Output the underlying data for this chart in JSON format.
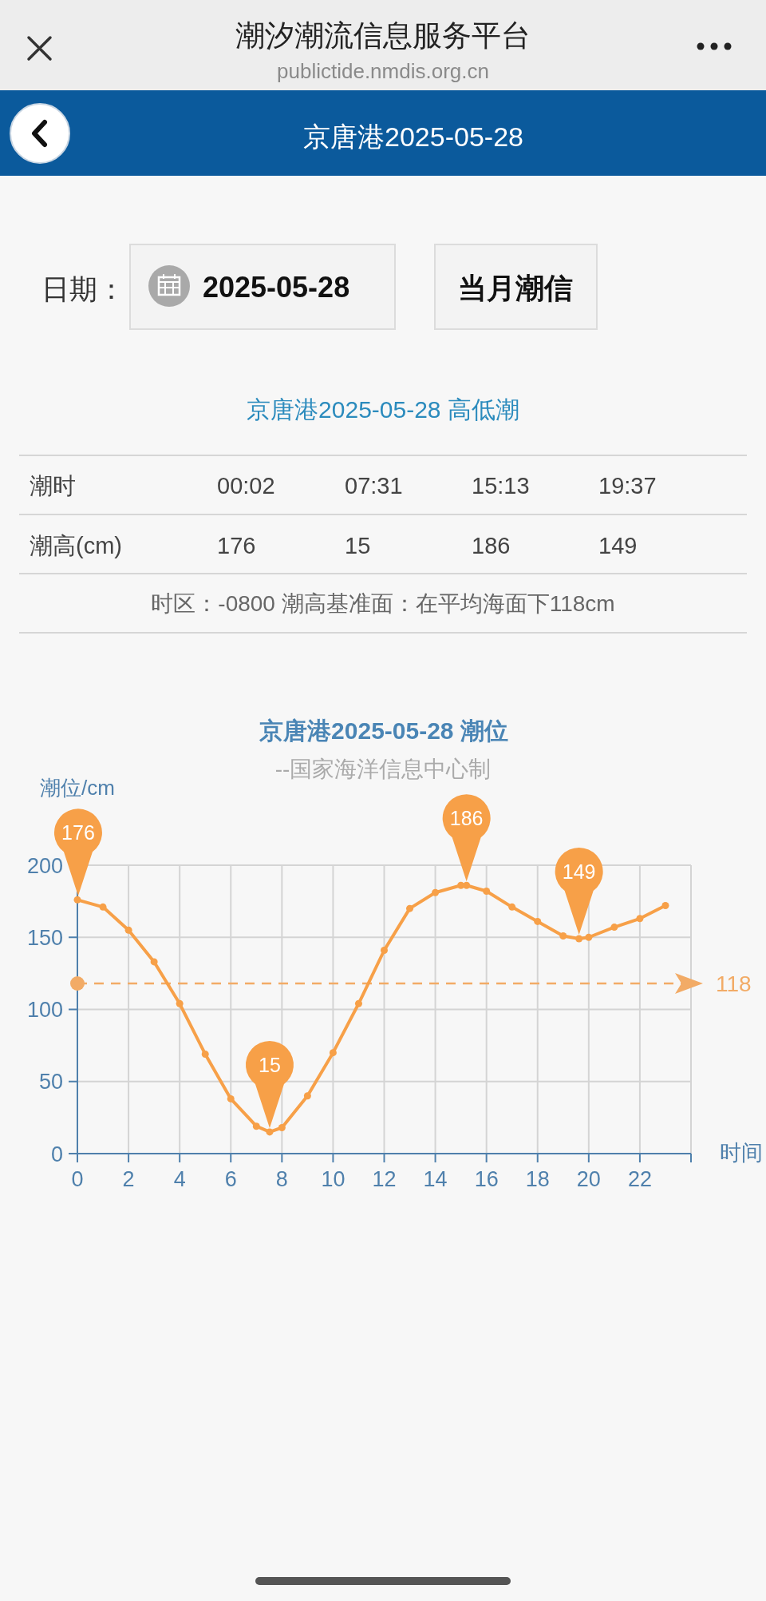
{
  "chart_data": {
    "type": "line",
    "title": "京唐港2025-05-28 潮位",
    "subtitle": "--国家海洋信息中心制",
    "xlabel": "时间",
    "ylabel": "潮位/cm",
    "x": [
      0,
      1,
      2,
      3,
      4,
      5,
      6,
      7,
      7.52,
      8,
      9,
      10,
      11,
      12,
      13,
      14,
      15,
      15.22,
      16,
      17,
      18,
      19,
      19.62,
      20,
      21,
      22,
      23
    ],
    "series": [
      {
        "color": "#f7a048",
        "values": [
          176,
          171,
          155,
          133,
          104,
          69,
          38,
          19,
          15,
          18,
          40,
          70,
          104,
          141,
          170,
          181,
          186,
          186,
          182,
          171,
          161,
          151,
          149,
          150,
          157,
          163,
          172
        ]
      }
    ],
    "xlim": [
      0,
      24
    ],
    "xticks": [
      0,
      2,
      4,
      6,
      8,
      10,
      12,
      14,
      16,
      18,
      20,
      22,
      {
        "value": 24,
        "label": null
      }
    ],
    "ylim": [
      0,
      200
    ],
    "yticks": [
      0,
      50,
      100,
      150,
      200
    ],
    "grid": true,
    "marker": "circle",
    "line_style": "solid",
    "ref_lines": [
      {
        "axis": "y",
        "value": 118,
        "label": "118",
        "color": "#f2ab66",
        "line_style": "dashed"
      }
    ],
    "annotations": [
      "潮汐潮流信息服务平台",
      "publictide.nmdis.org.cn",
      "京唐港2025-05-28",
      "日期：",
      "2025-05-28",
      "当月潮信",
      "京唐港2025-05-28 高低潮",
      "潮时",
      "00:02",
      "07:31",
      "15:13",
      "19:37",
      "潮高(cm)",
      "176",
      "15",
      "186",
      "149",
      "时区：-0800 潮高基准面：在平均海面下118cm",
      {
        "text": "176",
        "x": 0.03,
        "y": 176
      },
      {
        "text": "15",
        "x": 7.52,
        "y": 15
      },
      {
        "text": "186",
        "x": 15.22,
        "y": 186
      },
      {
        "text": "149",
        "x": 19.62,
        "y": 149
      }
    ]
  }
}
